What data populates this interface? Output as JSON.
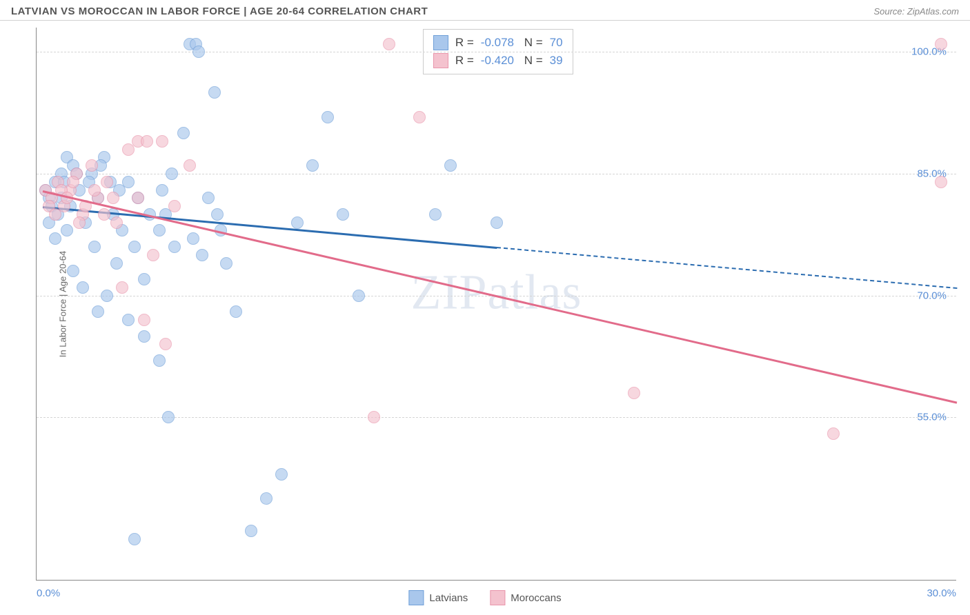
{
  "header": {
    "title": "LATVIAN VS MOROCCAN IN LABOR FORCE | AGE 20-64 CORRELATION CHART",
    "source": "Source: ZipAtlas.com"
  },
  "axes": {
    "ylabel": "In Labor Force | Age 20-64",
    "yticks": [
      {
        "pct": 100.0,
        "label": "100.0%"
      },
      {
        "pct": 85.0,
        "label": "85.0%"
      },
      {
        "pct": 70.0,
        "label": "70.0%"
      },
      {
        "pct": 55.0,
        "label": "55.0%"
      }
    ],
    "xticks": [
      {
        "pct": 0.0,
        "label": "0.0%"
      },
      {
        "pct": 30.0,
        "label": "30.0%"
      }
    ],
    "xlim": [
      0,
      30
    ],
    "ylim": [
      35,
      103
    ],
    "grid_color": "#d5d5d5",
    "axis_color": "#888888",
    "tick_fontsize": 15,
    "tick_color": "#5b8fd6"
  },
  "series": {
    "latvians": {
      "label": "Latvians",
      "fill_color": "#a9c7ec",
      "stroke_color": "#6f9fd8",
      "line_color": "#2b6cb0",
      "R": "-0.078",
      "N": "70",
      "trend": {
        "x1": 0.2,
        "y1": 81,
        "x2": 15,
        "y2": 76,
        "x2_dash": 30,
        "y2_dash": 71
      },
      "points": [
        {
          "x": 0.3,
          "y": 83
        },
        {
          "x": 0.4,
          "y": 82
        },
        {
          "x": 0.6,
          "y": 84
        },
        {
          "x": 0.5,
          "y": 81
        },
        {
          "x": 0.8,
          "y": 85
        },
        {
          "x": 1.0,
          "y": 87
        },
        {
          "x": 1.2,
          "y": 86
        },
        {
          "x": 0.7,
          "y": 80
        },
        {
          "x": 1.4,
          "y": 83
        },
        {
          "x": 1.6,
          "y": 79
        },
        {
          "x": 1.0,
          "y": 78
        },
        {
          "x": 1.8,
          "y": 85
        },
        {
          "x": 2.0,
          "y": 82
        },
        {
          "x": 2.2,
          "y": 87
        },
        {
          "x": 2.5,
          "y": 80
        },
        {
          "x": 2.8,
          "y": 78
        },
        {
          "x": 3.0,
          "y": 84
        },
        {
          "x": 3.2,
          "y": 76
        },
        {
          "x": 3.5,
          "y": 72
        },
        {
          "x": 1.2,
          "y": 73
        },
        {
          "x": 1.5,
          "y": 71
        },
        {
          "x": 2.0,
          "y": 68
        },
        {
          "x": 2.3,
          "y": 70
        },
        {
          "x": 3.0,
          "y": 67
        },
        {
          "x": 3.5,
          "y": 65
        },
        {
          "x": 4.0,
          "y": 78
        },
        {
          "x": 4.2,
          "y": 80
        },
        {
          "x": 4.5,
          "y": 76
        },
        {
          "x": 4.8,
          "y": 90
        },
        {
          "x": 5.0,
          "y": 101
        },
        {
          "x": 5.2,
          "y": 101
        },
        {
          "x": 5.3,
          "y": 100
        },
        {
          "x": 5.6,
          "y": 82
        },
        {
          "x": 5.8,
          "y": 95
        },
        {
          "x": 6.0,
          "y": 78
        },
        {
          "x": 6.2,
          "y": 74
        },
        {
          "x": 6.5,
          "y": 68
        },
        {
          "x": 7.0,
          "y": 41
        },
        {
          "x": 7.5,
          "y": 45
        },
        {
          "x": 8.0,
          "y": 48
        },
        {
          "x": 4.0,
          "y": 62
        },
        {
          "x": 4.3,
          "y": 55
        },
        {
          "x": 3.2,
          "y": 40
        },
        {
          "x": 8.5,
          "y": 79
        },
        {
          "x": 9.0,
          "y": 86
        },
        {
          "x": 9.5,
          "y": 92
        },
        {
          "x": 10.0,
          "y": 80
        },
        {
          "x": 10.5,
          "y": 70
        },
        {
          "x": 13.0,
          "y": 80
        },
        {
          "x": 13.5,
          "y": 86
        },
        {
          "x": 15.0,
          "y": 79
        },
        {
          "x": 0.9,
          "y": 84
        },
        {
          "x": 1.1,
          "y": 81
        },
        {
          "x": 1.3,
          "y": 85
        },
        {
          "x": 1.7,
          "y": 84
        },
        {
          "x": 0.4,
          "y": 79
        },
        {
          "x": 0.6,
          "y": 77
        },
        {
          "x": 0.8,
          "y": 82
        },
        {
          "x": 2.1,
          "y": 86
        },
        {
          "x": 2.4,
          "y": 84
        },
        {
          "x": 2.7,
          "y": 83
        },
        {
          "x": 3.3,
          "y": 82
        },
        {
          "x": 3.7,
          "y": 80
        },
        {
          "x": 4.1,
          "y": 83
        },
        {
          "x": 4.4,
          "y": 85
        },
        {
          "x": 5.1,
          "y": 77
        },
        {
          "x": 5.4,
          "y": 75
        },
        {
          "x": 5.9,
          "y": 80
        },
        {
          "x": 2.6,
          "y": 74
        },
        {
          "x": 1.9,
          "y": 76
        }
      ]
    },
    "moroccans": {
      "label": "Moroccans",
      "fill_color": "#f4c2ce",
      "stroke_color": "#e995ab",
      "line_color": "#e26b8a",
      "R": "-0.420",
      "N": "39",
      "trend": {
        "x1": 0.2,
        "y1": 83,
        "x2": 30,
        "y2": 57
      },
      "points": [
        {
          "x": 0.3,
          "y": 83
        },
        {
          "x": 0.5,
          "y": 82
        },
        {
          "x": 0.7,
          "y": 84
        },
        {
          "x": 0.9,
          "y": 81
        },
        {
          "x": 1.1,
          "y": 83
        },
        {
          "x": 1.3,
          "y": 85
        },
        {
          "x": 1.5,
          "y": 80
        },
        {
          "x": 1.8,
          "y": 86
        },
        {
          "x": 2.0,
          "y": 82
        },
        {
          "x": 2.3,
          "y": 84
        },
        {
          "x": 2.6,
          "y": 79
        },
        {
          "x": 3.0,
          "y": 88
        },
        {
          "x": 3.3,
          "y": 82
        },
        {
          "x": 3.3,
          "y": 89
        },
        {
          "x": 3.6,
          "y": 89
        },
        {
          "x": 4.1,
          "y": 89
        },
        {
          "x": 4.5,
          "y": 81
        },
        {
          "x": 5.0,
          "y": 86
        },
        {
          "x": 3.8,
          "y": 75
        },
        {
          "x": 2.8,
          "y": 71
        },
        {
          "x": 3.5,
          "y": 67
        },
        {
          "x": 4.2,
          "y": 64
        },
        {
          "x": 11.0,
          "y": 55
        },
        {
          "x": 11.5,
          "y": 101
        },
        {
          "x": 12.5,
          "y": 92
        },
        {
          "x": 19.5,
          "y": 58
        },
        {
          "x": 26.0,
          "y": 53
        },
        {
          "x": 29.5,
          "y": 84
        },
        {
          "x": 29.5,
          "y": 101
        },
        {
          "x": 0.4,
          "y": 81
        },
        {
          "x": 0.6,
          "y": 80
        },
        {
          "x": 0.8,
          "y": 83
        },
        {
          "x": 1.0,
          "y": 82
        },
        {
          "x": 1.2,
          "y": 84
        },
        {
          "x": 1.4,
          "y": 79
        },
        {
          "x": 1.6,
          "y": 81
        },
        {
          "x": 1.9,
          "y": 83
        },
        {
          "x": 2.2,
          "y": 80
        },
        {
          "x": 2.5,
          "y": 82
        }
      ]
    }
  },
  "legend": {
    "items": [
      {
        "key": "latvians",
        "label": "Latvians"
      },
      {
        "key": "moroccans",
        "label": "Moroccans"
      }
    ]
  },
  "watermark": {
    "text_a": "ZIP",
    "text_b": "atlas"
  },
  "styling": {
    "background": "#ffffff",
    "point_radius": 9,
    "point_opacity": 0.65,
    "line_width": 3,
    "title_color": "#555555",
    "title_fontsize": 15,
    "source_color": "#888888"
  }
}
